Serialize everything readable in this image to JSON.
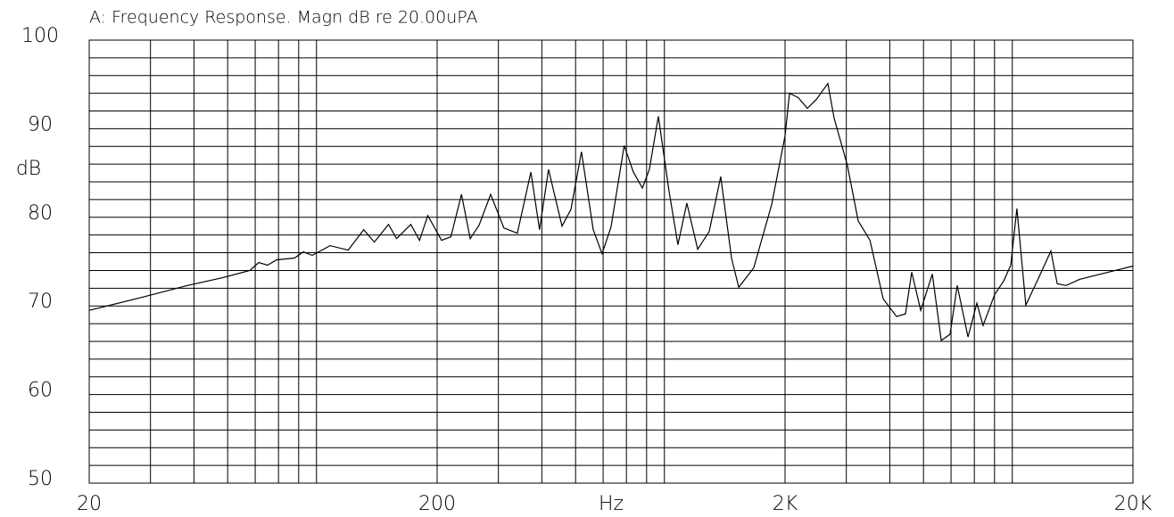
{
  "chart_data": {
    "type": "line",
    "title": "A: Frequency Response. Magn dB re 20.00uPA",
    "xlabel": "Hz",
    "ylabel": "dB",
    "xscale": "log",
    "xlim": [
      20,
      20000
    ],
    "ylim": [
      50,
      100
    ],
    "xticks": [
      20,
      200,
      {
        "value": 2000,
        "label": "2K"
      },
      {
        "value": 20000,
        "label": "20K"
      }
    ],
    "yticks": [
      50,
      60,
      70,
      80,
      90,
      100
    ],
    "xgrid": [
      30,
      40,
      50,
      60,
      70,
      80,
      90,
      300,
      400,
      500,
      600,
      700,
      800,
      900,
      3000,
      4000,
      5000,
      6000,
      7000,
      8000,
      9000
    ],
    "ygrid": [
      52,
      54,
      56,
      58,
      62,
      64,
      66,
      68,
      72,
      74,
      76,
      78,
      82,
      84,
      86,
      88,
      92,
      94,
      96,
      98
    ],
    "grid": true,
    "series": [
      {
        "color": "#000000",
        "x": [
          20,
          28.5,
          38.3,
          48.5,
          57.9,
          61.4,
          65.1,
          69.1,
          77.8,
          82.5,
          87.5,
          98.5,
          111,
          123,
          132,
          145,
          153,
          168,
          178,
          188,
          206,
          219,
          235,
          249,
          264,
          285,
          311,
          340,
          372,
          394,
          418,
          457,
          485,
          520,
          562,
          596,
          632,
          690,
          733,
          778,
          815,
          865,
          928,
          984,
          1044,
          1122,
          1211,
          1307,
          1403,
          1472,
          1626,
          1829,
          2000,
          2060,
          2184,
          2318,
          2460,
          2655,
          2768,
          3020,
          3245,
          3508,
          3830,
          4184,
          4438,
          4625,
          4909,
          5300,
          5622,
          5963,
          6250,
          6714,
          7116,
          7418,
          8010,
          8497,
          8905,
          9280,
          9843,
          10755,
          11617,
          12116,
          12850,
          14040,
          15780,
          17780,
          20000
        ],
        "values": [
          69.5,
          71.0,
          72.3,
          73.2,
          74.0,
          74.9,
          74.6,
          75.2,
          75.4,
          76.1,
          75.7,
          76.8,
          76.3,
          78.6,
          77.2,
          79.2,
          77.6,
          79.2,
          77.4,
          80.2,
          77.4,
          77.8,
          82.6,
          77.6,
          79.1,
          82.6,
          78.8,
          78.2,
          85.1,
          78.6,
          85.4,
          79.0,
          80.9,
          87.4,
          78.6,
          75.9,
          78.9,
          88.1,
          85.1,
          83.3,
          85.4,
          91.4,
          83.0,
          76.9,
          81.6,
          76.4,
          78.4,
          84.6,
          75.4,
          72.1,
          74.3,
          81.4,
          89.2,
          94.0,
          93.5,
          92.3,
          93.3,
          95.1,
          91.2,
          85.9,
          79.6,
          77.4,
          70.8,
          68.8,
          69.1,
          73.8,
          69.5,
          73.6,
          66.1,
          66.8,
          72.3,
          66.5,
          70.3,
          67.8,
          71.3,
          72.8,
          74.6,
          81.0,
          70.1,
          73.3,
          76.2,
          72.5,
          72.3,
          73.0,
          73.5,
          74.0,
          74.5
        ]
      }
    ]
  }
}
